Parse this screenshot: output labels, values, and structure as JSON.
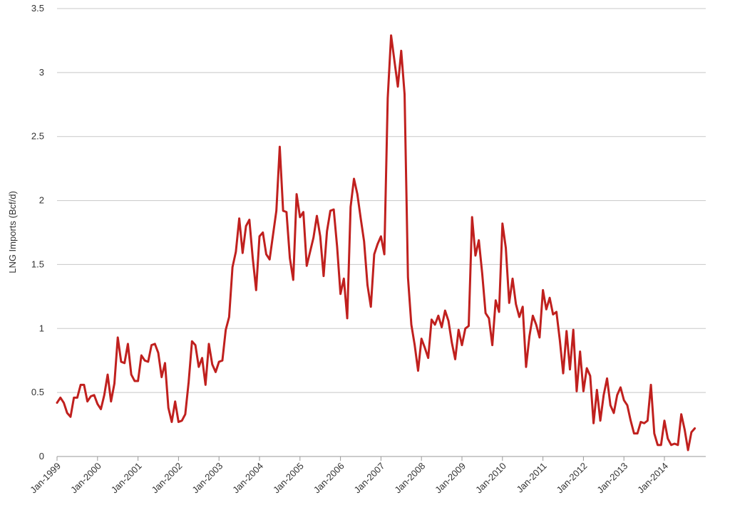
{
  "chart_data": {
    "type": "line",
    "title": "",
    "xlabel": "",
    "ylabel": "LNG Imports (Bcf/d)",
    "ylim": [
      0,
      3.5
    ],
    "yticks": [
      0,
      0.5,
      1,
      1.5,
      2,
      2.5,
      3,
      3.5
    ],
    "ytick_labels": [
      "0",
      "0.5",
      "1",
      "1.5",
      "2",
      "2.5",
      "3",
      "3.5"
    ],
    "xtick_labels": [
      "Jan-1999",
      "Jan-2000",
      "Jan-2001",
      "Jan-2002",
      "Jan-2003",
      "Jan-2004",
      "Jan-2005",
      "Jan-2006",
      "Jan-2007",
      "Jan-2008",
      "Jan-2009",
      "Jan-2010",
      "Jan-2011",
      "Jan-2012",
      "Jan-2013",
      "Jan-2014"
    ],
    "grid": true,
    "line_color": "#c0201e",
    "series": [
      {
        "values": [
          0.42,
          0.46,
          0.42,
          0.34,
          0.31,
          0.46,
          0.46,
          0.56,
          0.56,
          0.43,
          0.47,
          0.48,
          0.41,
          0.37,
          0.48,
          0.64,
          0.43,
          0.57,
          0.93,
          0.74,
          0.73,
          0.88,
          0.64,
          0.59,
          0.59,
          0.79,
          0.75,
          0.74,
          0.87,
          0.88,
          0.81,
          0.62,
          0.73,
          0.38,
          0.27,
          0.43,
          0.27,
          0.28,
          0.33,
          0.58,
          0.9,
          0.87,
          0.7,
          0.77,
          0.56,
          0.88,
          0.72,
          0.66,
          0.74,
          0.75,
          0.99,
          1.09,
          1.48,
          1.6,
          1.86,
          1.59,
          1.8,
          1.85,
          1.55,
          1.3,
          1.72,
          1.75,
          1.58,
          1.54,
          1.73,
          1.92,
          2.42,
          1.92,
          1.91,
          1.55,
          1.38,
          2.05,
          1.87,
          1.91,
          1.49,
          1.6,
          1.71,
          1.88,
          1.72,
          1.41,
          1.76,
          1.92,
          1.93,
          1.64,
          1.27,
          1.39,
          1.08,
          1.95,
          2.17,
          2.05,
          1.86,
          1.68,
          1.34,
          1.17,
          1.58,
          1.66,
          1.72,
          1.58,
          2.8,
          3.29,
          3.09,
          2.89,
          3.17,
          2.83,
          1.4,
          1.03,
          0.87,
          0.67,
          0.92,
          0.85,
          0.77,
          1.07,
          1.03,
          1.1,
          1.01,
          1.14,
          1.06,
          0.89,
          0.76,
          0.99,
          0.87,
          1.0,
          1.02,
          1.87,
          1.57,
          1.69,
          1.43,
          1.12,
          1.08,
          0.87,
          1.22,
          1.13,
          1.82,
          1.63,
          1.2,
          1.39,
          1.19,
          1.09,
          1.17,
          0.7,
          0.94,
          1.1,
          1.03,
          0.93,
          1.3,
          1.15,
          1.24,
          1.11,
          1.13,
          0.91,
          0.65,
          0.98,
          0.68,
          0.99,
          0.51,
          0.82,
          0.51,
          0.69,
          0.63,
          0.26,
          0.52,
          0.28,
          0.48,
          0.61,
          0.4,
          0.34,
          0.48,
          0.54,
          0.44,
          0.4,
          0.28,
          0.18,
          0.18,
          0.27,
          0.26,
          0.28,
          0.56,
          0.18,
          0.09,
          0.09,
          0.28,
          0.14,
          0.09,
          0.1,
          0.09,
          0.33,
          0.21,
          0.05,
          0.19,
          0.22
        ]
      }
    ]
  }
}
